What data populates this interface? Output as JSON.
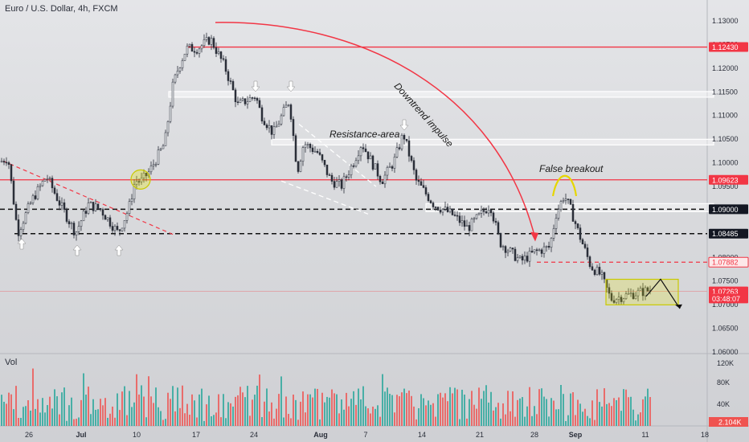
{
  "header": {
    "symbol_title": "Euro / U.S. Dollar, 4h, FXCM"
  },
  "volume_pane": {
    "label": "Vol"
  },
  "colors": {
    "up": "#26a69a",
    "down": "#ef5350",
    "candle_up": "#2a2e39",
    "candle_down": "#2a2e39",
    "red_line": "#f23645",
    "zone": "#e6e600"
  },
  "chart_data": {
    "type": "candlestick",
    "title": "Euro / U.S. Dollar, 4h, FXCM",
    "y_axis": {
      "min": 1.06,
      "max": 1.13,
      "ticks": [
        "1.13000",
        "1.12500",
        "1.12000",
        "1.11500",
        "1.11000",
        "1.10500",
        "1.10000",
        "1.09500",
        "1.09000",
        "1.08500",
        "1.08000",
        "1.07500",
        "1.07000",
        "1.06500",
        "1.06000"
      ]
    },
    "x_axis": {
      "ticks": [
        "26",
        "Jul",
        "10",
        "17",
        "24",
        "Aug",
        "7",
        "14",
        "21",
        "28",
        "Sep",
        "11",
        "18"
      ]
    },
    "price_labels": [
      {
        "text": "1.12430",
        "value": 1.1243,
        "style": "red"
      },
      {
        "text": "1.09623",
        "value": 1.09623,
        "style": "red"
      },
      {
        "text": "1.09000",
        "value": 1.09,
        "style": "dark"
      },
      {
        "text": "1.08485",
        "value": 1.08485,
        "style": "dark"
      },
      {
        "text": "1.07882",
        "value": 1.07882,
        "style": "redoutline"
      },
      {
        "text": "1.07263",
        "value": 1.07263,
        "style": "red"
      },
      {
        "text": "03:48:07",
        "value": 1.07115,
        "style": "red"
      }
    ],
    "levels": {
      "resistance_red": [
        1.1243,
        1.09623
      ],
      "dashed_black": [
        1.09,
        1.08485
      ],
      "dashed_red": 1.07882,
      "zones_white": [
        [
          1.1137,
          1.1149
        ],
        [
          1.1036,
          1.1048
        ],
        [
          1.0895,
          1.0912
        ]
      ]
    },
    "price_path": [
      [
        0,
        1.1
      ],
      [
        10,
        1.101
      ],
      [
        22,
        1.085
      ],
      [
        40,
        1.092
      ],
      [
        58,
        1.097
      ],
      [
        75,
        1.091
      ],
      [
        94,
        1.085
      ],
      [
        110,
        1.091
      ],
      [
        125,
        1.09
      ],
      [
        147,
        1.085
      ],
      [
        160,
        1.09
      ],
      [
        168,
        1.096
      ],
      [
        176,
        1.096
      ],
      [
        186,
        1.098
      ],
      [
        205,
        1.104
      ],
      [
        215,
        1.116
      ],
      [
        222,
        1.12
      ],
      [
        232,
        1.124
      ],
      [
        246,
        1.124
      ],
      [
        262,
        1.126
      ],
      [
        280,
        1.12
      ],
      [
        296,
        1.112
      ],
      [
        318,
        1.114
      ],
      [
        325,
        1.11
      ],
      [
        340,
        1.106
      ],
      [
        360,
        1.113
      ],
      [
        370,
        1.098
      ],
      [
        378,
        1.104
      ],
      [
        395,
        1.102
      ],
      [
        412,
        1.096
      ],
      [
        425,
        1.095
      ],
      [
        440,
        1.1
      ],
      [
        450,
        1.104
      ],
      [
        475,
        1.096
      ],
      [
        490,
        1.1
      ],
      [
        502,
        1.106
      ],
      [
        518,
        1.096
      ],
      [
        540,
        1.091
      ],
      [
        562,
        1.089
      ],
      [
        582,
        1.086
      ],
      [
        610,
        1.091
      ],
      [
        622,
        1.083
      ],
      [
        648,
        1.079
      ],
      [
        666,
        1.081
      ],
      [
        684,
        1.082
      ],
      [
        692,
        1.089
      ],
      [
        702,
        1.093
      ],
      [
        710,
        1.09
      ],
      [
        720,
        1.085
      ],
      [
        735,
        1.078
      ],
      [
        748,
        1.076
      ],
      [
        760,
        1.071
      ],
      [
        785,
        1.072
      ],
      [
        810,
        1.073
      ]
    ],
    "volume_axis": {
      "ticks": [
        "120K",
        "80K",
        "40K"
      ],
      "current_label": "2.104K"
    },
    "annotations": [
      "Downtrend impulse",
      "Resistance-area",
      "False breakout"
    ]
  }
}
